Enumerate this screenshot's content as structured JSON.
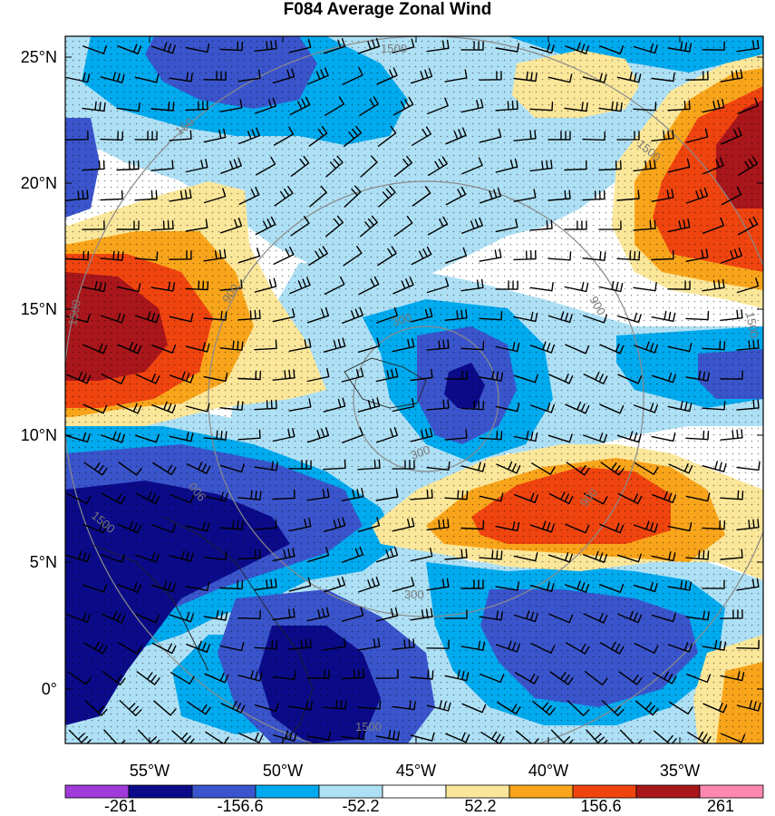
{
  "title": "F084 Average Zonal Wind",
  "lat_labels": [
    "25°N",
    "20°N",
    "15°N",
    "10°N",
    "5°N",
    "0°"
  ],
  "lon_labels": [
    "55°W",
    "50°W",
    "45°W",
    "40°W",
    "35°W"
  ],
  "contour_labels": [
    "1500",
    "1500",
    "1500",
    "1500",
    "900",
    "900",
    "900",
    "900",
    "300",
    "300",
    "300",
    "1500",
    "1500",
    "150"
  ],
  "colorbar": {
    "tick_labels": [
      "-261",
      "-156.6",
      "-52.2",
      "52.2",
      "156.6",
      "261"
    ],
    "colors": [
      "#a03ad8",
      "#0b0b8a",
      "#3a55cc",
      "#00aaee",
      "#aee0f5",
      "#ffffff",
      "#fbe79a",
      "#f9a51b",
      "#f0440f",
      "#a9161b",
      "#ff88b0"
    ]
  },
  "map": {
    "lon_range": [
      -58.3,
      -32.0
    ],
    "lat_range": [
      -1.8,
      26.0
    ],
    "boundary_color": "#000000",
    "range_ring_color": "#8a8a8a",
    "stipple": true
  }
}
